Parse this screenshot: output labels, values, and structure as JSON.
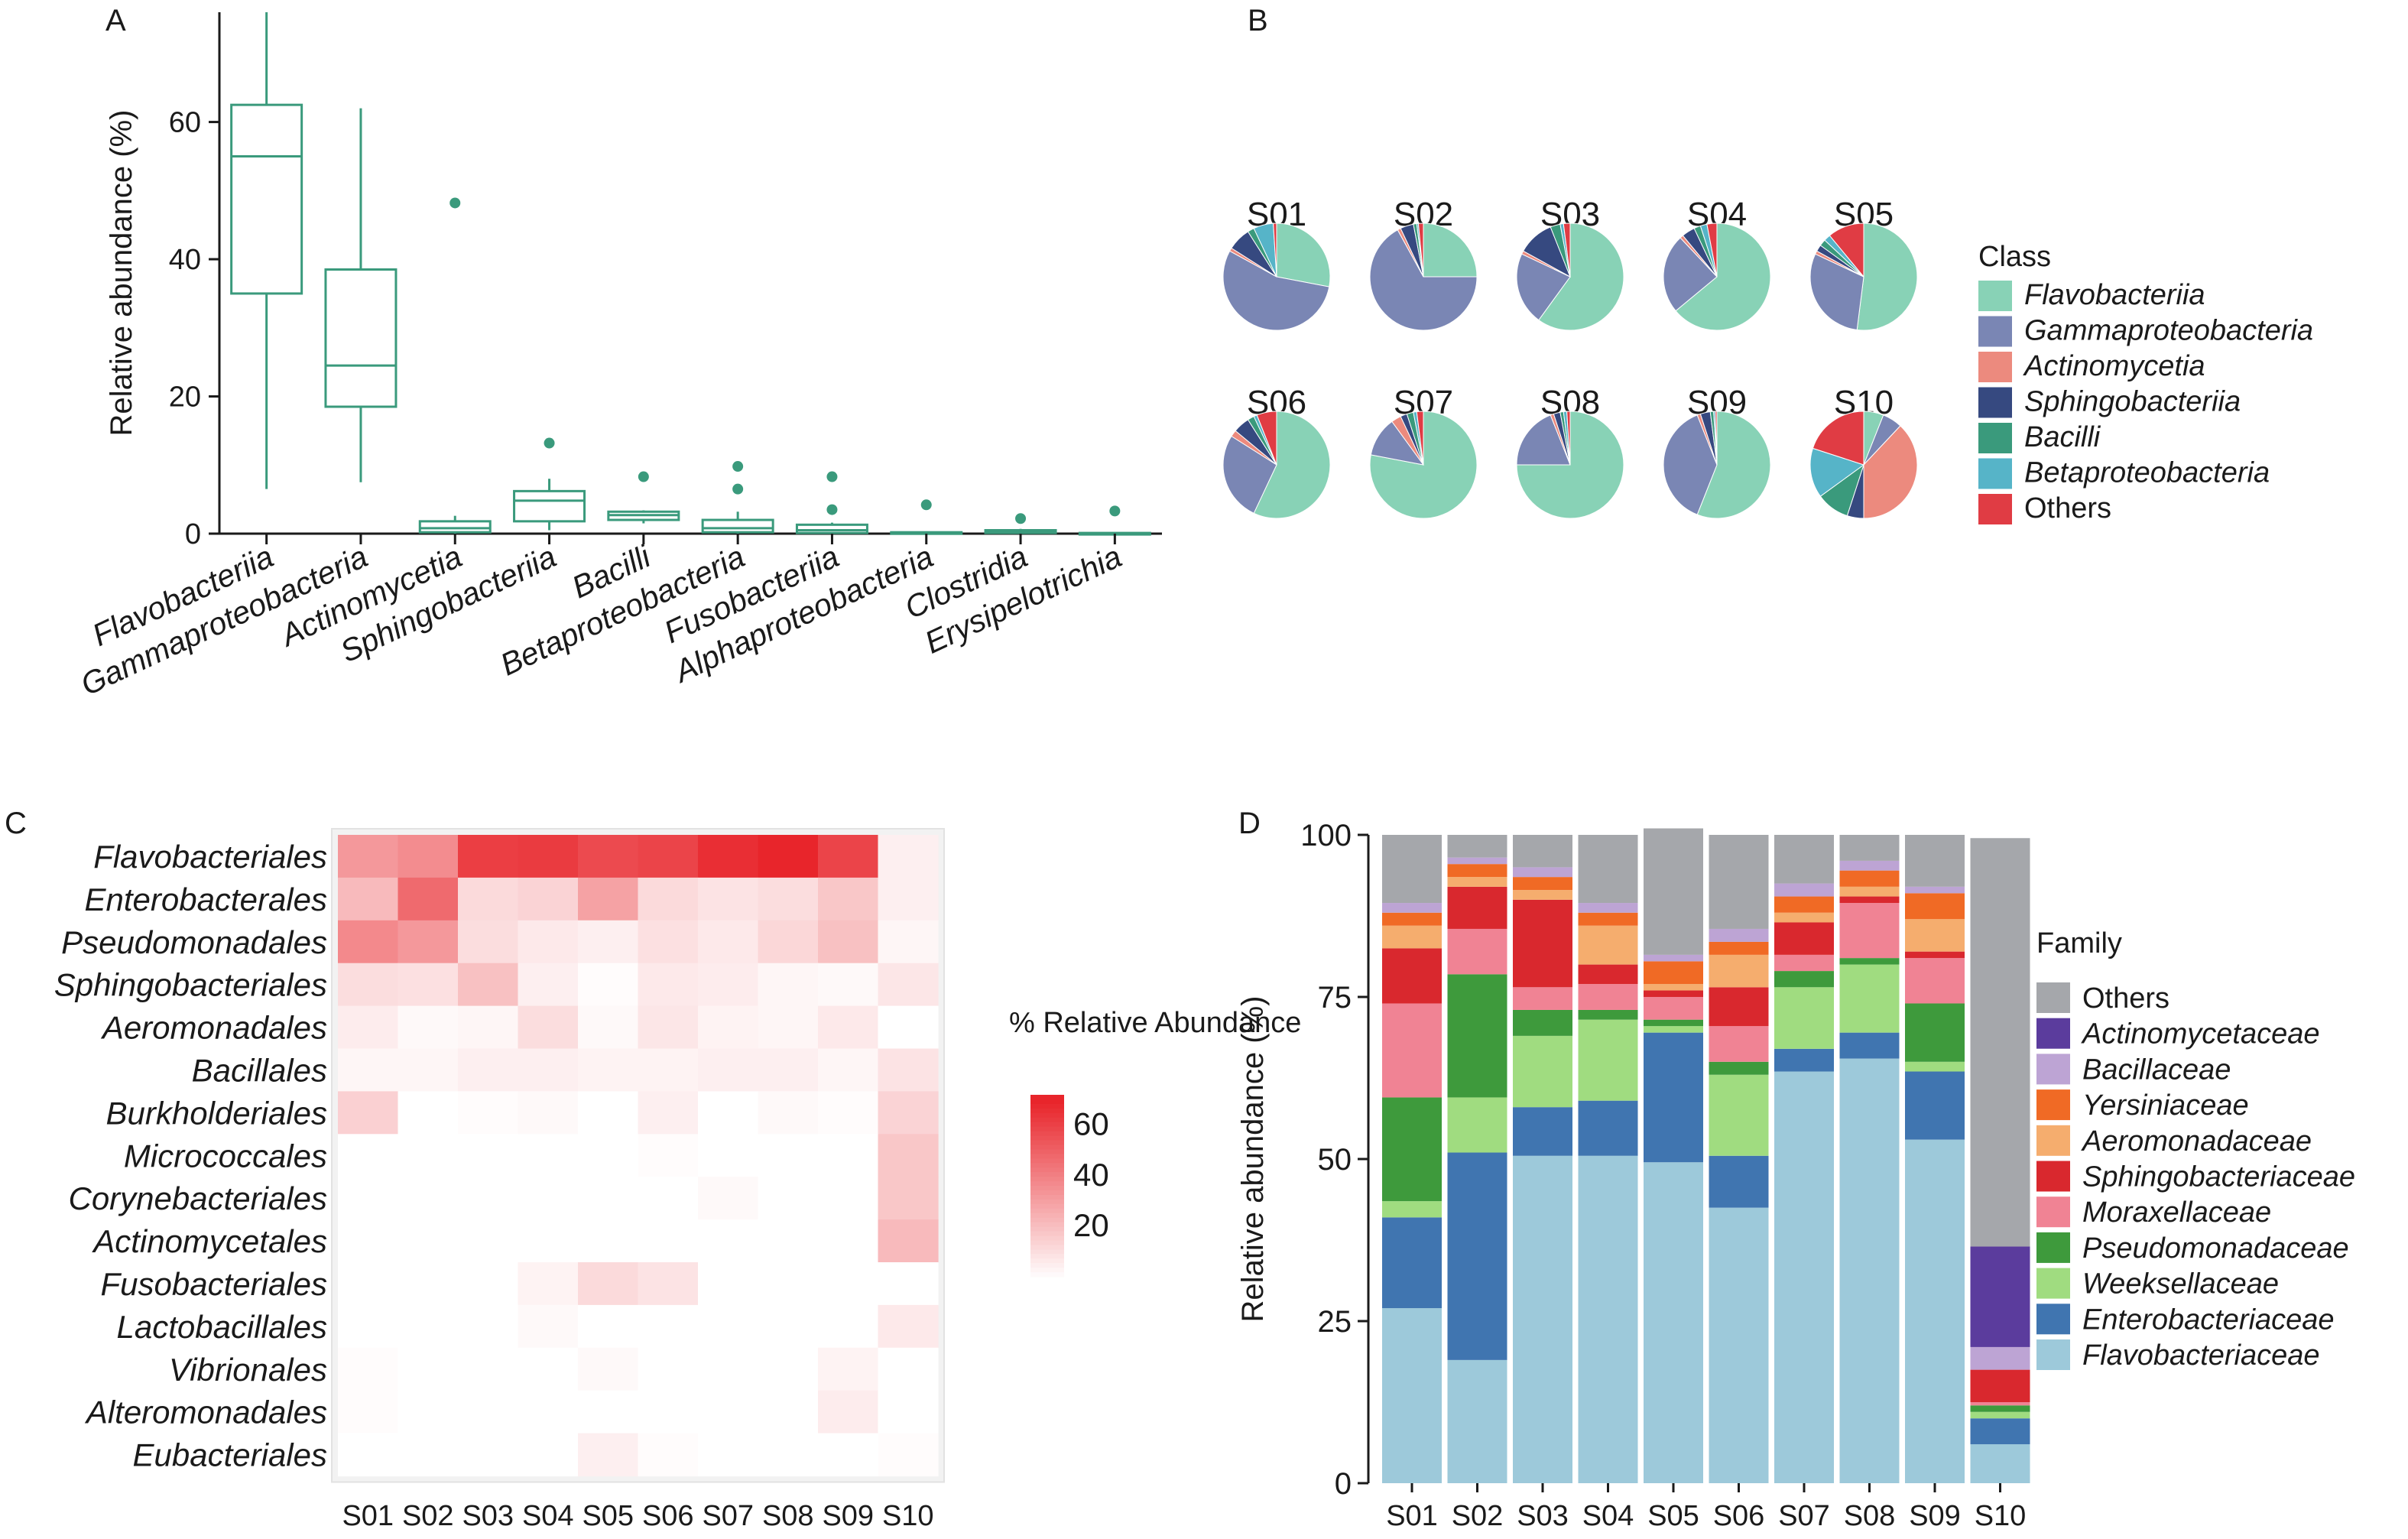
{
  "panels": {
    "a": "A",
    "b": "B",
    "c": "C",
    "d": "D"
  },
  "chart_data": [
    {
      "panel": "A",
      "type": "box",
      "xlabel": "",
      "ylabel": "Relative abundance (%)",
      "ylim": [
        0,
        76
      ],
      "yticks": [
        0,
        20,
        40,
        60
      ],
      "color": "#3a9a7c",
      "categories": [
        "Flavobacteriia",
        "Gammaproteobacteria",
        "Actinomycetia",
        "Sphingobacteriia",
        "Bacilli",
        "Betaproteobacteria",
        "Fusobacteriia",
        "Alphaproteobacteria",
        "Clostridia",
        "Erysipelotrichia"
      ],
      "boxes": [
        {
          "min": 6.5,
          "q1": 35,
          "median": 55,
          "q3": 62.5,
          "max": 76,
          "outliers": []
        },
        {
          "min": 7.5,
          "q1": 18.5,
          "median": 24.5,
          "q3": 38.5,
          "max": 62,
          "outliers": []
        },
        {
          "min": 0,
          "q1": 0.2,
          "median": 0.8,
          "q3": 1.8,
          "max": 2.6,
          "outliers": [
            48.2
          ]
        },
        {
          "min": 0.5,
          "q1": 1.8,
          "median": 4.8,
          "q3": 6.2,
          "max": 8,
          "outliers": [
            13.2
          ]
        },
        {
          "min": 1.5,
          "q1": 2,
          "median": 2.7,
          "q3": 3.2,
          "max": 3.4,
          "outliers": [
            8.3
          ]
        },
        {
          "min": 0,
          "q1": 0.2,
          "median": 0.8,
          "q3": 2,
          "max": 3.2,
          "outliers": [
            6.5,
            9.8
          ]
        },
        {
          "min": 0,
          "q1": 0.1,
          "median": 0.5,
          "q3": 1.3,
          "max": 1.6,
          "outliers": [
            3.5,
            8.3
          ]
        },
        {
          "min": 0,
          "q1": 0,
          "median": 0.1,
          "q3": 0.2,
          "max": 0.3,
          "outliers": [
            4.2
          ]
        },
        {
          "min": 0,
          "q1": 0.1,
          "median": 0.3,
          "q3": 0.5,
          "max": 0.7,
          "outliers": [
            2.2
          ]
        },
        {
          "min": 0,
          "q1": 0,
          "median": 0,
          "q3": 0.1,
          "max": 0.1,
          "outliers": [
            3.3
          ]
        }
      ]
    },
    {
      "panel": "B",
      "type": "pie",
      "legend_title": "Class",
      "legend_position": "right",
      "classes": [
        {
          "name": "Flavobacteriia",
          "color": "#88d2b6"
        },
        {
          "name": "Gammaproteobacteria",
          "color": "#7a86b4"
        },
        {
          "name": "Actinomycetia",
          "color": "#ec8a7e"
        },
        {
          "name": "Sphingobacteriia",
          "color": "#364980"
        },
        {
          "name": "Bacilli",
          "color": "#3a9a7c"
        },
        {
          "name": "Betaproteobacteria",
          "color": "#56b4c8"
        },
        {
          "name": "Others",
          "color": "#e03c44"
        }
      ],
      "pies": [
        {
          "sample": "S01",
          "values": [
            28,
            55,
            1,
            7,
            2,
            6,
            1
          ]
        },
        {
          "sample": "S02",
          "values": [
            25,
            67,
            1,
            4,
            1,
            0.5,
            1.5
          ]
        },
        {
          "sample": "S03",
          "values": [
            60,
            22,
            1,
            11,
            3,
            1,
            2
          ]
        },
        {
          "sample": "S04",
          "values": [
            64,
            24,
            1,
            4,
            2,
            2,
            3
          ]
        },
        {
          "sample": "S05",
          "values": [
            52,
            30,
            1,
            2,
            2,
            2,
            11
          ]
        },
        {
          "sample": "S06",
          "values": [
            57,
            27,
            2,
            5,
            2,
            1,
            6
          ]
        },
        {
          "sample": "S07",
          "values": [
            78,
            12,
            3,
            2,
            2,
            1,
            2
          ]
        },
        {
          "sample": "S08",
          "values": [
            75,
            19,
            1,
            2,
            1,
            1,
            1
          ]
        },
        {
          "sample": "S09",
          "values": [
            56,
            38,
            1,
            3,
            1,
            0.5,
            0.5
          ]
        },
        {
          "sample": "S10",
          "values": [
            6,
            6,
            38,
            5,
            10,
            15,
            20
          ]
        }
      ]
    },
    {
      "panel": "C",
      "type": "heatmap",
      "rows": [
        "Flavobacteriales",
        "Enterobacterales",
        "Pseudomonadales",
        "Sphingobacteriales",
        "Aeromonadales",
        "Bacillales",
        "Burkholderiales",
        "Micrococcales",
        "Corynebacteriales",
        "Actinomycetales",
        "Fusobacteriales",
        "Lactobacillales",
        "Vibrionales",
        "Alteromonadales",
        "Eubacteriales"
      ],
      "columns": [
        "S01",
        "S02",
        "S03",
        "S04",
        "S05",
        "S06",
        "S07",
        "S08",
        "S09",
        "S10"
      ],
      "values": [
        [
          33,
          37,
          62,
          63,
          58,
          60,
          67,
          70,
          60,
          5
        ],
        [
          22,
          48,
          12,
          14,
          30,
          12,
          9,
          11,
          18,
          5
        ],
        [
          38,
          33,
          11,
          7,
          5,
          10,
          7,
          13,
          20,
          3
        ],
        [
          11,
          10,
          20,
          5,
          1,
          7,
          6,
          3,
          2,
          8
        ],
        [
          6,
          2,
          3,
          11,
          2,
          8,
          4,
          3,
          7,
          0
        ],
        [
          3,
          3,
          5,
          5,
          4,
          4,
          5,
          5,
          3,
          9
        ],
        [
          15,
          0,
          1,
          2,
          0,
          5,
          0,
          2,
          1,
          14
        ],
        [
          0,
          0,
          0,
          0,
          0,
          1,
          0,
          0,
          0,
          18
        ],
        [
          0,
          0,
          0,
          0,
          0,
          0,
          2,
          0,
          0,
          18
        ],
        [
          0,
          0,
          0,
          0,
          0,
          0,
          0,
          0,
          0,
          22
        ],
        [
          0,
          0,
          0,
          4,
          12,
          9,
          0,
          0,
          0,
          0
        ],
        [
          0,
          0,
          0,
          2,
          0,
          0,
          0,
          0,
          0,
          7
        ],
        [
          1,
          0,
          0,
          0,
          2,
          0,
          0,
          0,
          4,
          0
        ],
        [
          1,
          0,
          0,
          0,
          0,
          0,
          0,
          0,
          6,
          0
        ],
        [
          0,
          0,
          0,
          0,
          5,
          1,
          0,
          0,
          0,
          1
        ]
      ],
      "legend_title": "% Relative Abundance",
      "legend_ticks": [
        20,
        40,
        60
      ],
      "scale_max": 70,
      "color_low": "#ffffff",
      "color_high": "#e8252b"
    },
    {
      "panel": "D",
      "type": "stacked_bar",
      "xlabel": "",
      "ylabel": "Relative abundance (%)",
      "ylim": [
        0,
        100
      ],
      "yticks": [
        0,
        25,
        50,
        75,
        100
      ],
      "legend_title": "Family",
      "legend_position": "right",
      "categories": [
        "S01",
        "S02",
        "S03",
        "S04",
        "S05",
        "S06",
        "S07",
        "S08",
        "S09",
        "S10"
      ],
      "series": [
        {
          "name": "Flavobacteriaceae",
          "color": "#9dc9da",
          "values": [
            27,
            19,
            50.5,
            50.5,
            49.5,
            42.5,
            63.5,
            65.5,
            53,
            6
          ]
        },
        {
          "name": "Enterobacteriaceae",
          "color": "#4075b0",
          "values": [
            14,
            32,
            7.5,
            8.5,
            20,
            8,
            3.5,
            4,
            10.5,
            4
          ]
        },
        {
          "name": "Weeksellaceae",
          "color": "#a0dc80",
          "values": [
            2.5,
            8.5,
            11,
            12.5,
            1,
            12.5,
            9.5,
            10.5,
            1.5,
            1
          ]
        },
        {
          "name": "Pseudomonadaceae",
          "color": "#3e9a3c",
          "values": [
            16,
            19,
            4,
            1.5,
            1,
            2,
            2.5,
            1,
            9,
            1
          ]
        },
        {
          "name": "Moraxellaceae",
          "color": "#f08394",
          "values": [
            14.5,
            7,
            3.5,
            4,
            3.5,
            5.5,
            2.5,
            8.5,
            7,
            0.5
          ]
        },
        {
          "name": "Sphingobacteriaceae",
          "color": "#d9282e",
          "values": [
            8.5,
            6.5,
            13.5,
            3,
            1,
            6,
            5,
            1,
            1,
            5
          ]
        },
        {
          "name": "Aeromonadaceae",
          "color": "#f5ad6e",
          "values": [
            3.5,
            1.5,
            1.5,
            6,
            1,
            5,
            1.5,
            1.5,
            5,
            0
          ]
        },
        {
          "name": "Yersiniaceae",
          "color": "#f06a25",
          "values": [
            2,
            2,
            2,
            2,
            3.5,
            2,
            2.5,
            2.5,
            4,
            0
          ]
        },
        {
          "name": "Bacillaceae",
          "color": "#bda4d4",
          "values": [
            1.5,
            1,
            1.5,
            1.5,
            1,
            2,
            2,
            1.5,
            1,
            3.5
          ]
        },
        {
          "name": "Actinomycetaceae",
          "color": "#5b3c9d",
          "values": [
            0,
            0,
            0,
            0,
            0,
            0,
            0,
            0,
            0,
            15.5
          ]
        },
        {
          "name": "Others",
          "color": "#a5a7ab",
          "values": [
            10.5,
            3.5,
            5,
            10.5,
            19.5,
            14.5,
            7.5,
            4,
            8,
            63
          ]
        }
      ],
      "legend_order": [
        "Others",
        "Actinomycetaceae",
        "Bacillaceae",
        "Yersiniaceae",
        "Aeromonadaceae",
        "Sphingobacteriaceae",
        "Moraxellaceae",
        "Pseudomonadaceae",
        "Weeksellaceae",
        "Enterobacteriaceae",
        "Flavobacteriaceae"
      ]
    }
  ]
}
